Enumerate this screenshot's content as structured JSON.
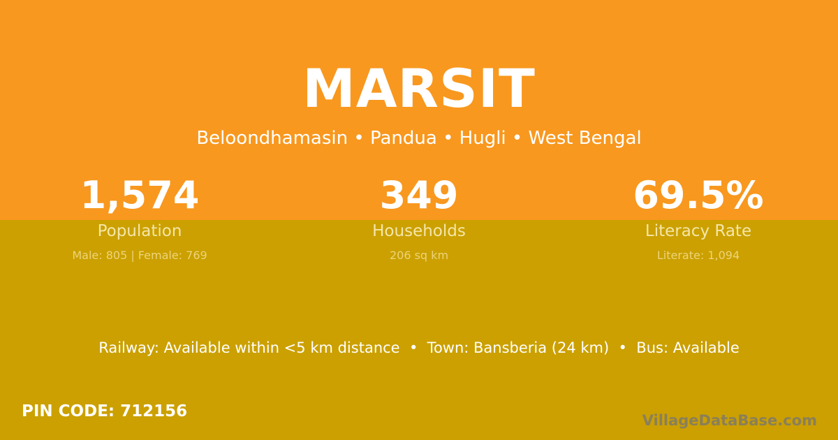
{
  "colors": {
    "top": "#F8981F",
    "bottom": "#CBA000"
  },
  "title": "MARSIT",
  "subtitle": "Beloondhamasin • Pandua • Hugli • West Bengal",
  "stats": [
    {
      "value": "1,574",
      "label": "Population",
      "sub": "Male: 805 | Female: 769"
    },
    {
      "value": "349",
      "label": "Households",
      "sub": "206 sq km"
    },
    {
      "value": "69.5%",
      "label": "Literacy Rate",
      "sub": "Literate: 1,094"
    }
  ],
  "transport": "Railway: Available within <5 km distance  •  Town: Bansberia (24 km)  •  Bus: Available",
  "pin": "PIN CODE: 712156",
  "watermark": "VillageDataBase.com"
}
